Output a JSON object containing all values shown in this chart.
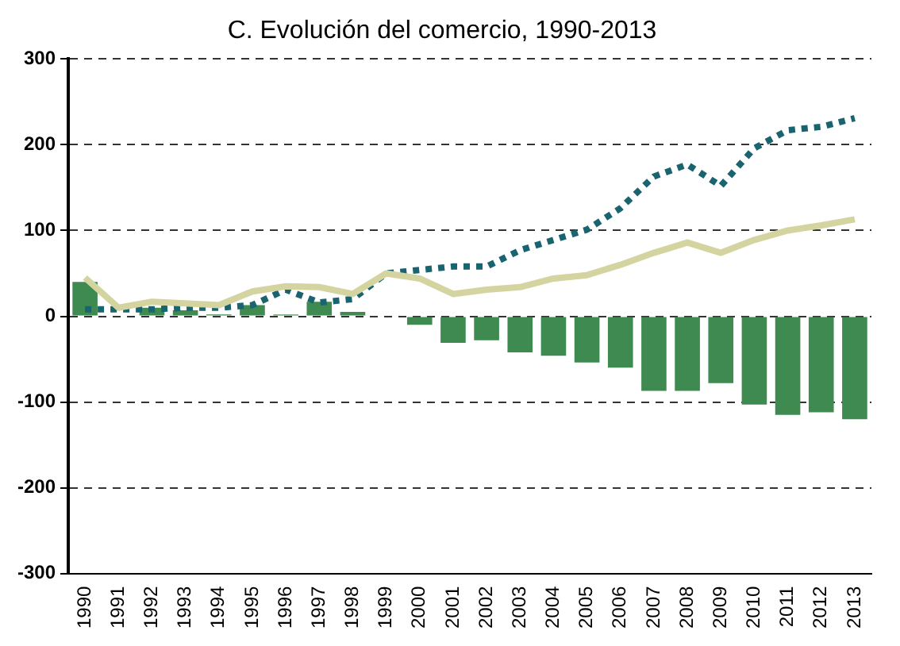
{
  "chart_data": {
    "type": "bar",
    "title": "C. Evolución del comercio, 1990-2013",
    "categories": [
      "1990",
      "1991",
      "1992",
      "1993",
      "1994",
      "1995",
      "1996",
      "1997",
      "1998",
      "1999",
      "2000",
      "2001",
      "2002",
      "2003",
      "2004",
      "2005",
      "2006",
      "2007",
      "2008",
      "2009",
      "2010",
      "2011",
      "2012",
      "2013"
    ],
    "series": [
      {
        "color": "#3f8a50",
        "values": [
          40,
          1,
          10,
          7,
          2,
          13,
          2,
          17,
          5,
          -1,
          -10,
          -31,
          -28,
          -42,
          -46,
          -54,
          -60,
          -87,
          -87,
          -78,
          -103,
          -115,
          -112,
          -120
        ]
      },
      {
        "type": "line",
        "color": "#d4d4a0",
        "line_style": "solid",
        "values": [
          45,
          10,
          17,
          15,
          13,
          29,
          35,
          34,
          26,
          50,
          44,
          26,
          31,
          34,
          44,
          48,
          60,
          74,
          86,
          74,
          89,
          100,
          106,
          113
        ]
      },
      {
        "type": "line",
        "color": "#1a6470",
        "line_style": "dotted",
        "values": [
          8,
          8,
          8,
          10,
          10,
          13,
          31,
          16,
          20,
          50,
          54,
          58,
          58,
          77,
          89,
          101,
          126,
          163,
          177,
          152,
          196,
          217,
          221,
          231
        ]
      }
    ],
    "ylim": [
      -300,
      300
    ],
    "yticks": [
      -300,
      -200,
      -100,
      0,
      100,
      200,
      300
    ],
    "grid": "y",
    "legend": false,
    "marker": "none"
  }
}
